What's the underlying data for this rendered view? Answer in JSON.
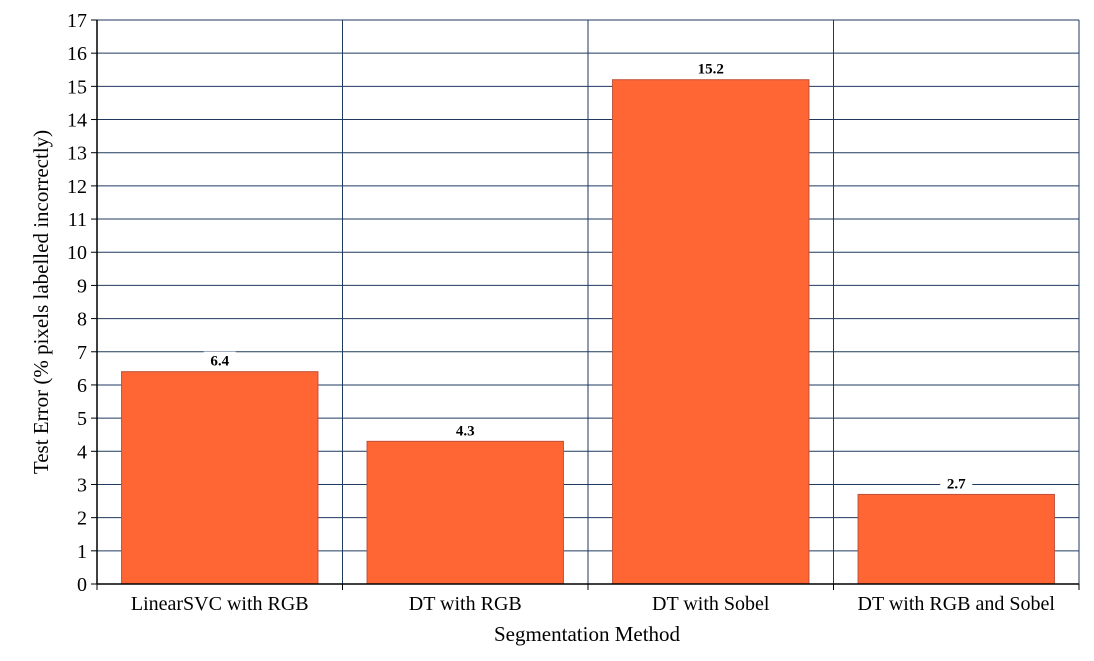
{
  "chart_data": {
    "type": "bar",
    "title": "",
    "xlabel": "Segmentation Method",
    "ylabel": "Test Error (% pixels labelled incorrectly)",
    "categories": [
      "LinearSVC with RGB",
      "DT with RGB",
      "DT with Sobel",
      "DT with RGB and Sobel"
    ],
    "values": [
      6.4,
      4.3,
      15.2,
      2.7
    ],
    "data_labels": [
      "6.4",
      "4.3",
      "15.2",
      "2.7"
    ],
    "ylim": [
      0,
      17
    ],
    "y_ticks": [
      "0",
      "1",
      "2",
      "3",
      "4",
      "5",
      "6",
      "7",
      "8",
      "9",
      "10",
      "11",
      "12",
      "13",
      "14",
      "15",
      "16",
      "17"
    ],
    "grid": true,
    "bar_color": "#ff6633",
    "bar_edge_color": "#c0503a",
    "grid_color": "#1f3a5f"
  }
}
